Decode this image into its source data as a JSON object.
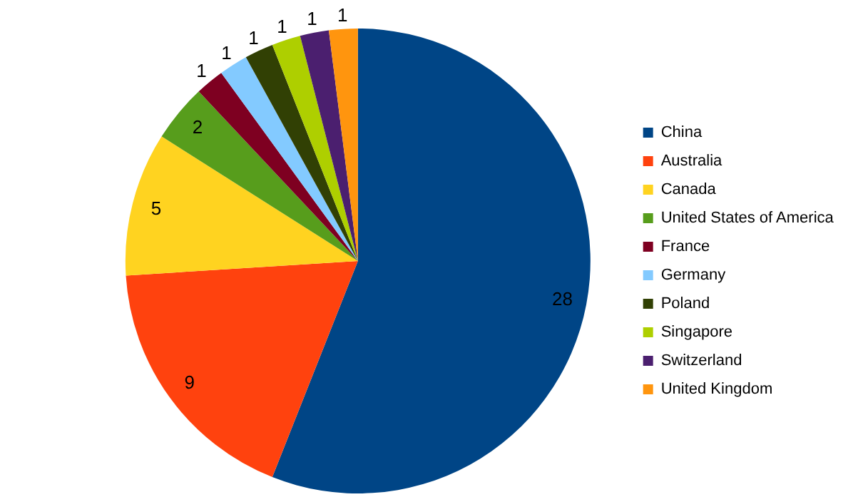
{
  "chart_data": {
    "type": "pie",
    "categories": [
      "China",
      "Australia",
      "Canada",
      "United States of America",
      "France",
      "Germany",
      "Poland",
      "Singapore",
      "Switzerland",
      "United Kingdom"
    ],
    "values": [
      28,
      9,
      5,
      2,
      1,
      1,
      1,
      1,
      1,
      1
    ],
    "colors": [
      "#004586",
      "#ff420e",
      "#ffd320",
      "#579d1c",
      "#7e0021",
      "#83caff",
      "#314004",
      "#aecf00",
      "#4b1f6f",
      "#ff950e"
    ],
    "data_labels": true,
    "legend": "right"
  }
}
